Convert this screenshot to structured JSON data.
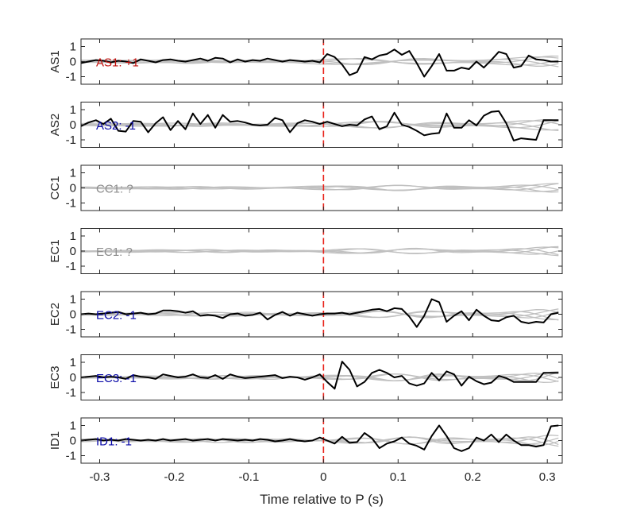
{
  "colors": {
    "trace": "#000000",
    "reference": "#c0c0c0",
    "p_marker": "#e8221a",
    "positive_label": "#c0100c",
    "negative_label": "#0a0aa8",
    "unknown_label": "#8c8c8c"
  },
  "chart_data": {
    "type": "line",
    "layout": "stacked-panels",
    "xlabel": "Time relative to P (s)",
    "xlim": [
      -0.325,
      0.32
    ],
    "x_ticks": [
      -0.3,
      -0.2,
      -0.1,
      0,
      0.1,
      0.2,
      0.3
    ],
    "x_tick_labels": [
      "-0.3",
      "-0.2",
      "-0.1",
      "0",
      "0.1",
      "0.2",
      "0.3"
    ],
    "ylim": [
      -1.5,
      1.5
    ],
    "y_ticks": [
      1,
      0,
      -1
    ],
    "y_tick_labels": [
      "1",
      "0",
      "-1"
    ],
    "p_marker_x": 0,
    "x": [
      -0.325,
      -0.315,
      -0.305,
      -0.295,
      -0.285,
      -0.275,
      -0.265,
      -0.255,
      -0.245,
      -0.235,
      -0.225,
      -0.215,
      -0.205,
      -0.195,
      -0.185,
      -0.175,
      -0.165,
      -0.155,
      -0.145,
      -0.135,
      -0.125,
      -0.115,
      -0.105,
      -0.095,
      -0.085,
      -0.075,
      -0.065,
      -0.055,
      -0.045,
      -0.035,
      -0.025,
      -0.015,
      -0.005,
      0.005,
      0.015,
      0.025,
      0.035,
      0.045,
      0.055,
      0.065,
      0.075,
      0.085,
      0.095,
      0.105,
      0.115,
      0.125,
      0.135,
      0.145,
      0.155,
      0.165,
      0.175,
      0.185,
      0.195,
      0.205,
      0.215,
      0.225,
      0.235,
      0.245,
      0.255,
      0.265,
      0.275,
      0.285,
      0.295,
      0.305,
      0.315
    ],
    "panels": [
      {
        "ylabel": "AS1",
        "annotation": "AS1: +1",
        "polarity": "positive",
        "trace": [
          -0.1,
          0.0,
          0.1,
          0.05,
          -0.05,
          0.05,
          0.0,
          -0.1,
          0.15,
          0.05,
          -0.05,
          0.1,
          0.15,
          0.05,
          0.0,
          0.1,
          0.2,
          0.05,
          0.25,
          0.2,
          -0.05,
          0.15,
          0.0,
          0.1,
          0.05,
          0.2,
          0.1,
          0.0,
          0.1,
          0.05,
          0.0,
          0.05,
          -0.05,
          0.5,
          0.3,
          -0.2,
          -0.9,
          -0.7,
          0.3,
          0.15,
          0.4,
          0.5,
          0.8,
          0.45,
          0.7,
          -0.1,
          -1.0,
          -0.3,
          0.5,
          -0.6,
          -0.6,
          -0.4,
          -0.5,
          0.0,
          -0.4,
          0.1,
          0.65,
          0.5,
          -0.4,
          -0.3,
          0.4,
          0.15,
          0.1,
          0.0,
          0.0
        ]
      },
      {
        "ylabel": "AS2",
        "annotation": "AS2: -1",
        "polarity": "negative",
        "trace": [
          -0.1,
          0.15,
          0.3,
          0.05,
          0.4,
          -0.4,
          -0.45,
          0.25,
          0.2,
          -0.5,
          0.1,
          0.5,
          -0.35,
          0.25,
          -0.3,
          0.75,
          0.05,
          0.65,
          -0.2,
          0.65,
          0.2,
          0.25,
          0.15,
          0.0,
          -0.05,
          0.0,
          0.45,
          0.3,
          -0.5,
          0.1,
          0.3,
          0.2,
          0.05,
          0.2,
          0.05,
          -0.1,
          0.0,
          -0.05,
          0.35,
          0.55,
          -0.3,
          -0.1,
          0.8,
          0.0,
          -0.15,
          -0.4,
          -0.7,
          -0.6,
          -0.55,
          0.75,
          -0.2,
          -0.2,
          0.3,
          -0.05,
          0.6,
          0.85,
          0.9,
          0.1,
          -1.05,
          -0.9,
          -0.95,
          -1.0,
          0.3,
          0.3,
          0.3
        ]
      },
      {
        "ylabel": "CC1",
        "annotation": "CC1: ?",
        "polarity": "unknown",
        "trace": []
      },
      {
        "ylabel": "EC1",
        "annotation": "EC1: ?",
        "polarity": "unknown",
        "trace": []
      },
      {
        "ylabel": "EC2",
        "annotation": "EC2: -1",
        "polarity": "negative",
        "trace": [
          0.0,
          0.05,
          0.0,
          0.05,
          0.1,
          0.15,
          0.0,
          0.05,
          0.1,
          0.0,
          0.05,
          0.25,
          0.25,
          0.2,
          0.1,
          0.2,
          -0.1,
          -0.05,
          -0.1,
          -0.25,
          0.0,
          0.05,
          -0.1,
          -0.05,
          0.1,
          -0.35,
          -0.05,
          0.15,
          -0.1,
          0.1,
          0.0,
          -0.1,
          0.0,
          0.05,
          0.05,
          0.1,
          0.0,
          0.1,
          0.2,
          0.3,
          0.35,
          0.2,
          0.4,
          0.35,
          -0.15,
          -0.85,
          -0.1,
          1.0,
          0.8,
          -0.5,
          -0.1,
          0.2,
          -0.4,
          0.3,
          -0.1,
          -0.4,
          -0.45,
          -0.2,
          -0.1,
          -0.5,
          -0.6,
          -0.5,
          -0.55,
          0.0,
          0.1
        ]
      },
      {
        "ylabel": "EC3",
        "annotation": "EC3: -1",
        "polarity": "negative",
        "trace": [
          0.0,
          0.05,
          0.1,
          0.0,
          0.05,
          0.0,
          -0.1,
          0.15,
          0.05,
          0.0,
          -0.1,
          0.2,
          0.1,
          0.0,
          0.05,
          0.2,
          0.0,
          -0.05,
          0.15,
          -0.1,
          0.2,
          0.05,
          -0.05,
          0.0,
          0.05,
          0.1,
          0.15,
          -0.05,
          0.05,
          0.0,
          -0.15,
          0.0,
          0.2,
          -0.3,
          -0.75,
          1.05,
          0.5,
          -0.6,
          -0.3,
          0.3,
          0.5,
          0.3,
          0.0,
          0.1,
          -0.4,
          -0.55,
          -0.4,
          0.3,
          -0.2,
          0.4,
          0.2,
          -0.55,
          0.05,
          -0.25,
          -0.45,
          -0.35,
          0.1,
          -0.05,
          -0.3,
          -0.3,
          -0.3,
          -0.3,
          0.3,
          0.3,
          0.3
        ]
      },
      {
        "ylabel": "ID1",
        "annotation": "ID1: -1",
        "polarity": "negative",
        "trace": [
          0.0,
          0.05,
          0.1,
          0.0,
          0.05,
          0.0,
          0.1,
          0.05,
          0.0,
          0.05,
          0.0,
          0.1,
          0.0,
          0.05,
          0.1,
          0.0,
          0.05,
          0.1,
          0.0,
          0.1,
          0.05,
          0.0,
          0.05,
          0.0,
          0.1,
          0.05,
          -0.05,
          0.0,
          0.1,
          0.0,
          -0.05,
          0.0,
          0.2,
          0.0,
          -0.2,
          0.25,
          -0.15,
          -0.1,
          0.5,
          0.15,
          -0.5,
          -0.2,
          -0.05,
          0.2,
          -0.2,
          -0.35,
          -0.6,
          0.3,
          1.0,
          0.3,
          -0.5,
          -0.7,
          -0.5,
          0.2,
          0.0,
          0.4,
          -0.1,
          0.4,
          0.0,
          -0.3,
          -0.3,
          -0.4,
          -0.3,
          0.95,
          1.0
        ]
      }
    ]
  }
}
